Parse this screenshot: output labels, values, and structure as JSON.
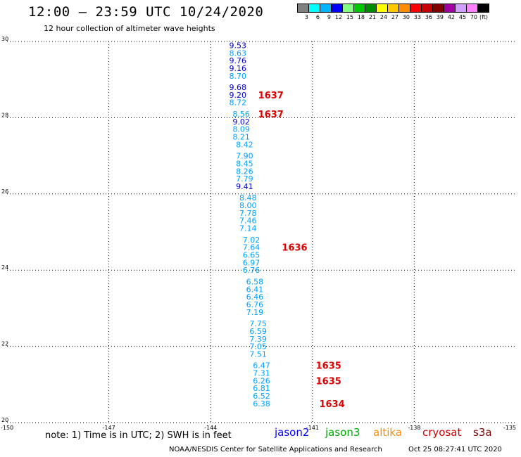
{
  "title": "12:00 – 23:59 UTC 10/24/2020",
  "subtitle": "12 hour collection of altimeter wave heights",
  "colorbar": {
    "colors": [
      "#808080",
      "#00ffff",
      "#00b4ff",
      "#0000ff",
      "#80ff80",
      "#00c800",
      "#008c00",
      "#ffff00",
      "#ffc800",
      "#ff8c00",
      "#ff0000",
      "#c80000",
      "#800000",
      "#a000a0",
      "#d0a0ff",
      "#ff80ff",
      "#000000"
    ],
    "labels": [
      "3",
      "6",
      "9",
      "12",
      "15",
      "18",
      "21",
      "24",
      "27",
      "30",
      "33",
      "36",
      "39",
      "42",
      "45",
      "70"
    ],
    "unit": "(ft)"
  },
  "note": "note: 1) Time is in UTC; 2) SWH is in feet",
  "legend": [
    {
      "name": "jason2",
      "color": "#0000ff"
    },
    {
      "name": "jason3",
      "color": "#00aa00"
    },
    {
      "name": "altika",
      "color": "#ff8c00"
    },
    {
      "name": "cryosat",
      "color": "#cc0000"
    },
    {
      "name": "s3a",
      "color": "#800000"
    }
  ],
  "footer": "NOAA/NESDIS Center for Satellite Applications and Research",
  "timestamp": "Oct 25 08:27:41 UTC 2020",
  "chart_data": {
    "type": "scatter",
    "xlim": [
      -150,
      -135
    ],
    "ylim": [
      20,
      30
    ],
    "xticks": [
      "-150",
      "-147",
      "-144",
      "-141",
      "-138",
      "-135"
    ],
    "yticks": [
      "20",
      "22",
      "24",
      "26",
      "28",
      "30"
    ],
    "grid": true,
    "swh_points": [
      {
        "lon": -143.2,
        "lat": 29.9,
        "label": "9.53",
        "color": "#0000cc"
      },
      {
        "lon": -143.2,
        "lat": 29.7,
        "label": "8.63",
        "color": "#00a0ff"
      },
      {
        "lon": -143.2,
        "lat": 29.5,
        "label": "9.76",
        "color": "#0000cc"
      },
      {
        "lon": -143.2,
        "lat": 29.3,
        "label": "9.16",
        "color": "#0000cc"
      },
      {
        "lon": -143.2,
        "lat": 29.1,
        "label": "8.70",
        "color": "#00a0ff"
      },
      {
        "lon": -143.2,
        "lat": 28.8,
        "label": "9.68",
        "color": "#0000cc"
      },
      {
        "lon": -143.2,
        "lat": 28.6,
        "label": "9.20",
        "color": "#0000cc"
      },
      {
        "lon": -143.2,
        "lat": 28.4,
        "label": "8.72",
        "color": "#00a0ff"
      },
      {
        "lon": -143.1,
        "lat": 28.1,
        "label": "8.56",
        "color": "#00a0ff"
      },
      {
        "lon": -143.1,
        "lat": 27.9,
        "label": "9.02",
        "color": "#0000cc"
      },
      {
        "lon": -143.1,
        "lat": 27.7,
        "label": "8.09",
        "color": "#00a0ff"
      },
      {
        "lon": -143.1,
        "lat": 27.5,
        "label": "8.21",
        "color": "#00a0ff"
      },
      {
        "lon": -143.0,
        "lat": 27.3,
        "label": "8.42",
        "color": "#00a0ff"
      },
      {
        "lon": -143.0,
        "lat": 27.0,
        "label": "7.90",
        "color": "#00a0ff"
      },
      {
        "lon": -143.0,
        "lat": 26.8,
        "label": "8.45",
        "color": "#00a0ff"
      },
      {
        "lon": -143.0,
        "lat": 26.6,
        "label": "8.26",
        "color": "#00a0ff"
      },
      {
        "lon": -143.0,
        "lat": 26.4,
        "label": "7.79",
        "color": "#00a0ff"
      },
      {
        "lon": -143.0,
        "lat": 26.2,
        "label": "9.41",
        "color": "#0000cc"
      },
      {
        "lon": -142.9,
        "lat": 25.9,
        "label": "8.48",
        "color": "#00a0ff"
      },
      {
        "lon": -142.9,
        "lat": 25.7,
        "label": "8.00",
        "color": "#00a0ff"
      },
      {
        "lon": -142.9,
        "lat": 25.5,
        "label": "7.78",
        "color": "#00a0ff"
      },
      {
        "lon": -142.9,
        "lat": 25.3,
        "label": "7.46",
        "color": "#00a0ff"
      },
      {
        "lon": -142.9,
        "lat": 25.1,
        "label": "7.14",
        "color": "#00a0ff"
      },
      {
        "lon": -142.8,
        "lat": 24.8,
        "label": "7.02",
        "color": "#00a0ff"
      },
      {
        "lon": -142.8,
        "lat": 24.6,
        "label": "7.64",
        "color": "#00a0ff"
      },
      {
        "lon": -142.8,
        "lat": 24.4,
        "label": "6.65",
        "color": "#00a0ff"
      },
      {
        "lon": -142.8,
        "lat": 24.2,
        "label": "6.97",
        "color": "#00a0ff"
      },
      {
        "lon": -142.8,
        "lat": 24.0,
        "label": "6.76",
        "color": "#00a0ff"
      },
      {
        "lon": -142.7,
        "lat": 23.7,
        "label": "6.58",
        "color": "#00a0ff"
      },
      {
        "lon": -142.7,
        "lat": 23.5,
        "label": "6.41",
        "color": "#00a0ff"
      },
      {
        "lon": -142.7,
        "lat": 23.3,
        "label": "6.46",
        "color": "#00a0ff"
      },
      {
        "lon": -142.7,
        "lat": 23.1,
        "label": "6.76",
        "color": "#00a0ff"
      },
      {
        "lon": -142.7,
        "lat": 22.9,
        "label": "7.19",
        "color": "#00a0ff"
      },
      {
        "lon": -142.6,
        "lat": 22.6,
        "label": "7.75",
        "color": "#00a0ff"
      },
      {
        "lon": -142.6,
        "lat": 22.4,
        "label": "6.59",
        "color": "#00a0ff"
      },
      {
        "lon": -142.6,
        "lat": 22.2,
        "label": "7.39",
        "color": "#00a0ff"
      },
      {
        "lon": -142.6,
        "lat": 22.0,
        "label": "7.05",
        "color": "#00a0ff"
      },
      {
        "lon": -142.6,
        "lat": 21.8,
        "label": "7.51",
        "color": "#00a0ff"
      },
      {
        "lon": -142.5,
        "lat": 21.5,
        "label": "6.47",
        "color": "#00a0ff"
      },
      {
        "lon": -142.5,
        "lat": 21.3,
        "label": "7.31",
        "color": "#00a0ff"
      },
      {
        "lon": -142.5,
        "lat": 21.1,
        "label": "6.26",
        "color": "#00a0ff"
      },
      {
        "lon": -142.5,
        "lat": 20.9,
        "label": "6.81",
        "color": "#00a0ff"
      },
      {
        "lon": -142.5,
        "lat": 20.7,
        "label": "6.52",
        "color": "#00a0ff"
      },
      {
        "lon": -142.5,
        "lat": 20.5,
        "label": "6.38",
        "color": "#00a0ff"
      }
    ],
    "time_labels": [
      {
        "lon": -142.6,
        "lat": 28.6,
        "label": "1637"
      },
      {
        "lon": -142.6,
        "lat": 28.1,
        "label": "1637"
      },
      {
        "lon": -141.9,
        "lat": 24.6,
        "label": "1636"
      },
      {
        "lon": -140.9,
        "lat": 21.5,
        "label": "1635"
      },
      {
        "lon": -140.9,
        "lat": 21.1,
        "label": "1635"
      },
      {
        "lon": -140.8,
        "lat": 20.5,
        "label": "1634"
      }
    ],
    "time_label_color": "#dd0000"
  }
}
